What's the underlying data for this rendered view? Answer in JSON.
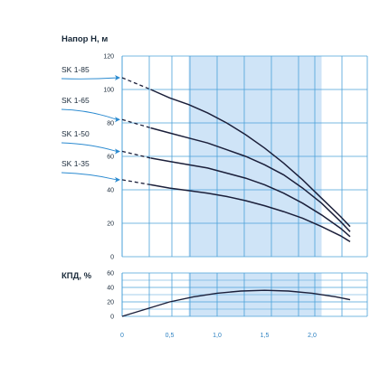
{
  "chart_data": [
    {
      "type": "line",
      "title": "Напор H, м",
      "ylim": [
        0,
        120
      ],
      "xlim": [
        0,
        2.5
      ],
      "y_ticks": [
        "0",
        "20",
        "40",
        "60",
        "80",
        "100",
        "120"
      ],
      "x_ticks": [
        "0",
        "0,5",
        "1,0",
        "1,5",
        "2,0"
      ],
      "highlight_band": [
        0.7,
        2.1
      ],
      "grid": true,
      "series": [
        {
          "name": "SK 1-85",
          "x": [
            0,
            0.3,
            0.5,
            0.7,
            0.9,
            1.1,
            1.3,
            1.5,
            1.7,
            1.9,
            2.1,
            2.3,
            2.4
          ],
          "y": [
            107,
            100,
            95,
            91,
            86,
            80,
            73,
            65,
            56,
            46,
            35,
            24,
            18
          ],
          "dashed_until": 0.3
        },
        {
          "name": "SK 1-65",
          "x": [
            0,
            0.3,
            0.5,
            0.7,
            0.9,
            1.1,
            1.3,
            1.5,
            1.7,
            1.9,
            2.1,
            2.3,
            2.4
          ],
          "y": [
            82,
            77,
            74,
            71,
            68,
            64,
            60,
            55,
            49,
            41,
            32,
            21,
            15
          ],
          "dashed_until": 0.3
        },
        {
          "name": "SK 1-50",
          "x": [
            0,
            0.3,
            0.5,
            0.7,
            0.9,
            1.1,
            1.3,
            1.5,
            1.7,
            1.9,
            2.1,
            2.3,
            2.4
          ],
          "y": [
            63,
            59,
            57,
            55,
            53,
            50,
            47,
            43,
            38,
            32,
            25,
            17,
            12
          ],
          "dashed_until": 0.3
        },
        {
          "name": "SK 1-35",
          "x": [
            0,
            0.3,
            0.5,
            0.7,
            0.9,
            1.1,
            1.3,
            1.5,
            1.7,
            1.9,
            2.1,
            2.3,
            2.4
          ],
          "y": [
            46,
            43,
            41,
            39.5,
            38,
            36,
            33.5,
            30.5,
            27,
            23,
            18,
            12.5,
            9
          ],
          "dashed_until": 0.3
        }
      ]
    },
    {
      "type": "line",
      "title": "КПД, %",
      "ylim": [
        0,
        60
      ],
      "xlim": [
        0,
        2.5
      ],
      "y_ticks": [
        "0",
        "20",
        "40",
        "60"
      ],
      "x_ticks": [
        "0",
        "0,5",
        "1,0",
        "1,5",
        "2,0"
      ],
      "highlight_band": [
        0.7,
        2.1
      ],
      "grid": true,
      "series": [
        {
          "x": [
            0,
            0.25,
            0.5,
            0.75,
            1.0,
            1.25,
            1.5,
            1.75,
            2.0,
            2.25,
            2.4
          ],
          "y": [
            0,
            10,
            20,
            27,
            32,
            35,
            36,
            35,
            32,
            27,
            23
          ]
        }
      ]
    }
  ],
  "colors": {
    "curve": "#1b1f3a",
    "grid": "#4aa0d8",
    "band": "#cfe4f7",
    "arrow": "#2a8ad0"
  }
}
